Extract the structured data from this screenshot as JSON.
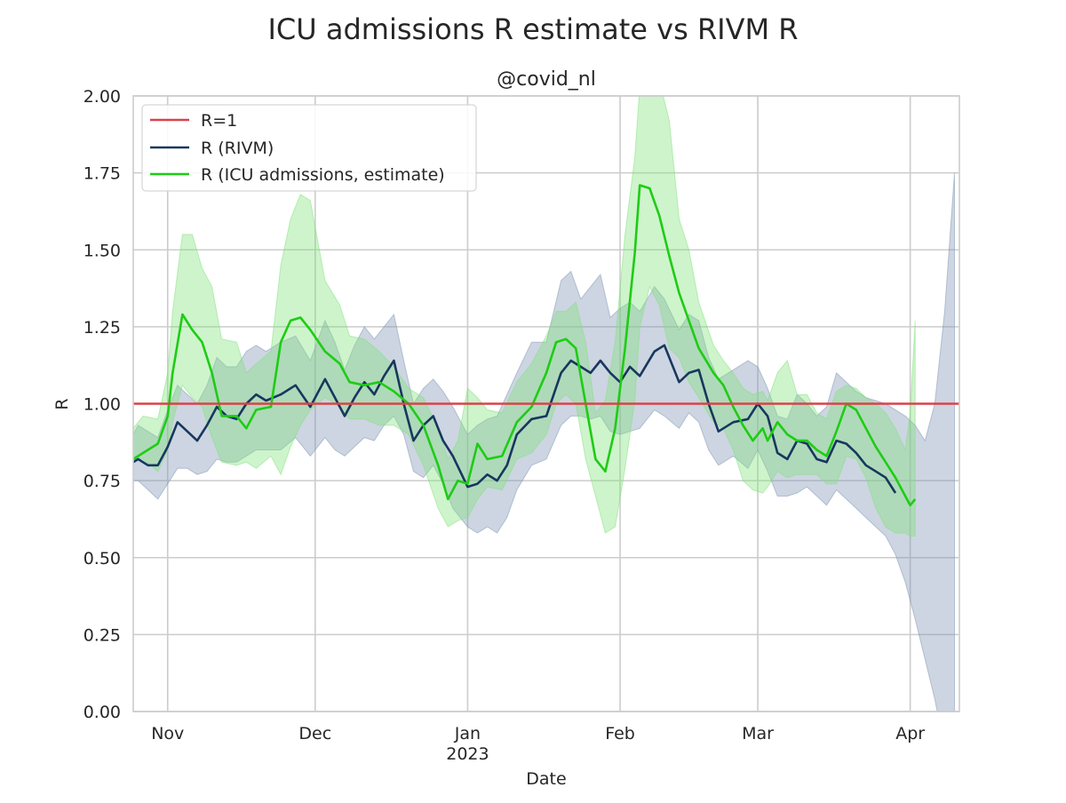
{
  "chart_data": {
    "type": "line",
    "title": "ICU admissions R estimate vs RIVM R",
    "subtitle": "@covid_nl",
    "xlabel": "Date",
    "ylabel": "R",
    "xlim": [
      "2022-10-25",
      "2023-04-11"
    ],
    "ylim": [
      0,
      2
    ],
    "grid": true,
    "legend_position": "top-left",
    "y_ticks": [
      0,
      0.25,
      0.5,
      0.75,
      1.0,
      1.25,
      1.5,
      1.75,
      2.0
    ],
    "y_tick_labels": [
      "0.00",
      "0.25",
      "0.50",
      "0.75",
      "1.00",
      "1.25",
      "1.50",
      "1.75",
      "2.00"
    ],
    "x_ticks": [
      {
        "date": "2022-11-01",
        "label": "Nov",
        "sublabel": ""
      },
      {
        "date": "2022-12-01",
        "label": "Dec",
        "sublabel": ""
      },
      {
        "date": "2023-01-01",
        "label": "Jan",
        "sublabel": "2023"
      },
      {
        "date": "2023-02-01",
        "label": "Feb",
        "sublabel": ""
      },
      {
        "date": "2023-03-01",
        "label": "Mar",
        "sublabel": ""
      },
      {
        "date": "2023-04-01",
        "label": "Apr",
        "sublabel": ""
      }
    ],
    "reference_line": {
      "name": "R=1",
      "y": 1.0,
      "color": "#d9434b"
    },
    "series": [
      {
        "name": "R (RIVM)",
        "color": "#17375e",
        "band_color": "#8095b3",
        "points": [
          [
            "2022-10-25",
            0.81,
            0.75,
            0.9
          ],
          [
            "2022-10-26",
            0.82,
            0.75,
            0.93
          ],
          [
            "2022-10-28",
            0.8,
            0.72,
            0.91
          ],
          [
            "2022-10-30",
            0.8,
            0.69,
            0.89
          ],
          [
            "2022-11-01",
            0.86,
            0.74,
            0.98
          ],
          [
            "2022-11-03",
            0.94,
            0.79,
            1.06
          ],
          [
            "2022-11-05",
            0.91,
            0.79,
            1.03
          ],
          [
            "2022-11-07",
            0.88,
            0.77,
            1.0
          ],
          [
            "2022-11-09",
            0.93,
            0.78,
            1.06
          ],
          [
            "2022-11-11",
            0.99,
            0.82,
            1.15
          ],
          [
            "2022-11-13",
            0.96,
            0.81,
            1.12
          ],
          [
            "2022-11-15",
            0.95,
            0.81,
            1.12
          ],
          [
            "2022-11-17",
            1.0,
            0.83,
            1.17
          ],
          [
            "2022-11-19",
            1.03,
            0.85,
            1.19
          ],
          [
            "2022-11-21",
            1.01,
            0.85,
            1.17
          ],
          [
            "2022-11-24",
            1.03,
            0.85,
            1.2
          ],
          [
            "2022-11-27",
            1.06,
            0.89,
            1.22
          ],
          [
            "2022-11-30",
            0.99,
            0.83,
            1.14
          ],
          [
            "2022-12-03",
            1.08,
            0.89,
            1.27
          ],
          [
            "2022-12-05",
            1.02,
            0.85,
            1.2
          ],
          [
            "2022-12-07",
            0.96,
            0.83,
            1.11
          ],
          [
            "2022-12-09",
            1.02,
            0.86,
            1.19
          ],
          [
            "2022-12-11",
            1.07,
            0.89,
            1.25
          ],
          [
            "2022-12-13",
            1.03,
            0.88,
            1.21
          ],
          [
            "2022-12-15",
            1.09,
            0.93,
            1.25
          ],
          [
            "2022-12-17",
            1.14,
            0.96,
            1.29
          ],
          [
            "2022-12-19",
            1.0,
            0.9,
            1.14
          ],
          [
            "2022-12-21",
            0.88,
            0.78,
            1.0
          ],
          [
            "2022-12-23",
            0.93,
            0.76,
            1.05
          ],
          [
            "2022-12-25",
            0.96,
            0.8,
            1.08
          ],
          [
            "2022-12-27",
            0.88,
            0.74,
            1.04
          ],
          [
            "2022-12-29",
            0.83,
            0.66,
            0.99
          ],
          [
            "2023-01-01",
            0.73,
            0.6,
            0.9
          ],
          [
            "2023-01-03",
            0.74,
            0.58,
            0.93
          ],
          [
            "2023-01-05",
            0.77,
            0.6,
            0.95
          ],
          [
            "2023-01-07",
            0.75,
            0.58,
            0.96
          ],
          [
            "2023-01-09",
            0.8,
            0.63,
            1.03
          ],
          [
            "2023-01-11",
            0.9,
            0.72,
            1.1
          ],
          [
            "2023-01-14",
            0.95,
            0.8,
            1.2
          ],
          [
            "2023-01-17",
            0.96,
            0.82,
            1.2
          ],
          [
            "2023-01-20",
            1.1,
            0.93,
            1.4
          ],
          [
            "2023-01-22",
            1.14,
            0.96,
            1.43
          ],
          [
            "2023-01-24",
            1.12,
            0.96,
            1.34
          ],
          [
            "2023-01-26",
            1.1,
            0.95,
            1.38
          ],
          [
            "2023-01-28",
            1.14,
            0.96,
            1.42
          ],
          [
            "2023-01-30",
            1.1,
            0.91,
            1.28
          ],
          [
            "2023-02-01",
            1.07,
            0.9,
            1.31
          ],
          [
            "2023-02-03",
            1.12,
            0.91,
            1.33
          ],
          [
            "2023-02-05",
            1.09,
            0.92,
            1.3
          ],
          [
            "2023-02-08",
            1.17,
            0.98,
            1.38
          ],
          [
            "2023-02-10",
            1.19,
            0.96,
            1.34
          ],
          [
            "2023-02-13",
            1.07,
            0.92,
            1.24
          ],
          [
            "2023-02-15",
            1.1,
            0.97,
            1.29
          ],
          [
            "2023-02-17",
            1.11,
            0.94,
            1.27
          ],
          [
            "2023-02-19",
            1.0,
            0.85,
            1.15
          ],
          [
            "2023-02-21",
            0.91,
            0.8,
            1.08
          ],
          [
            "2023-02-24",
            0.94,
            0.83,
            1.11
          ],
          [
            "2023-02-27",
            0.95,
            0.79,
            1.14
          ],
          [
            "2023-03-01",
            1.0,
            0.85,
            1.12
          ],
          [
            "2023-03-03",
            0.96,
            0.78,
            1.05
          ],
          [
            "2023-03-05",
            0.84,
            0.7,
            0.96
          ],
          [
            "2023-03-07",
            0.82,
            0.7,
            0.95
          ],
          [
            "2023-03-09",
            0.88,
            0.71,
            1.03
          ],
          [
            "2023-03-11",
            0.87,
            0.73,
            1.0
          ],
          [
            "2023-03-13",
            0.82,
            0.7,
            0.96
          ],
          [
            "2023-03-15",
            0.81,
            0.67,
            0.99
          ],
          [
            "2023-03-17",
            0.88,
            0.72,
            1.1
          ],
          [
            "2023-03-19",
            0.87,
            0.69,
            1.07
          ],
          [
            "2023-03-21",
            0.84,
            0.66,
            1.04
          ],
          [
            "2023-03-23",
            0.8,
            0.63,
            1.02
          ],
          [
            "2023-03-25",
            0.78,
            0.6,
            1.01
          ],
          [
            "2023-03-27",
            0.76,
            0.57,
            1.0
          ],
          [
            "2023-03-29",
            0.71,
            0.51,
            0.98
          ],
          [
            "2023-03-31",
            null,
            0.42,
            0.96
          ],
          [
            "2023-04-02",
            null,
            0.3,
            0.93
          ],
          [
            "2023-04-04",
            null,
            0.17,
            0.88
          ],
          [
            "2023-04-06",
            null,
            0.04,
            1.0
          ],
          [
            "2023-04-08",
            null,
            -0.12,
            1.3
          ],
          [
            "2023-04-10",
            null,
            -0.3,
            1.75
          ]
        ]
      },
      {
        "name": "R (ICU admissions, estimate)",
        "color": "#1ecc14",
        "band_color": "#7fe27a",
        "points": [
          [
            "2022-10-25",
            0.82,
            0.83,
            0.92
          ],
          [
            "2022-10-27",
            0.84,
            0.82,
            0.96
          ],
          [
            "2022-10-30",
            0.87,
            0.78,
            0.95
          ],
          [
            "2022-11-01",
            0.96,
            0.85,
            1.1
          ],
          [
            "2022-11-02",
            1.1,
            0.94,
            1.3
          ],
          [
            "2022-11-04",
            1.29,
            1.06,
            1.55
          ],
          [
            "2022-11-06",
            1.24,
            1.02,
            1.55
          ],
          [
            "2022-11-08",
            1.2,
            0.99,
            1.44
          ],
          [
            "2022-11-10",
            1.1,
            0.89,
            1.38
          ],
          [
            "2022-11-12",
            0.96,
            0.81,
            1.21
          ],
          [
            "2022-11-15",
            0.96,
            0.8,
            1.2
          ],
          [
            "2022-11-17",
            0.92,
            0.81,
            1.1
          ],
          [
            "2022-11-19",
            0.98,
            0.79,
            1.13
          ],
          [
            "2022-11-22",
            0.99,
            0.83,
            1.17
          ],
          [
            "2022-11-24",
            1.2,
            0.77,
            1.45
          ],
          [
            "2022-11-26",
            1.27,
            0.86,
            1.6
          ],
          [
            "2022-11-28",
            1.28,
            0.93,
            1.68
          ],
          [
            "2022-11-30",
            1.24,
            0.98,
            1.66
          ],
          [
            "2022-12-03",
            1.17,
            1.02,
            1.4
          ],
          [
            "2022-12-06",
            1.13,
            0.99,
            1.32
          ],
          [
            "2022-12-08",
            1.07,
            0.95,
            1.22
          ],
          [
            "2022-12-11",
            1.06,
            0.95,
            1.21
          ],
          [
            "2022-12-14",
            1.07,
            0.93,
            1.17
          ],
          [
            "2022-12-17",
            1.04,
            0.93,
            1.12
          ],
          [
            "2022-12-20",
            1.0,
            0.9,
            1.05
          ],
          [
            "2022-12-23",
            0.93,
            0.8,
            1.02
          ],
          [
            "2022-12-26",
            0.8,
            0.66,
            0.92
          ],
          [
            "2022-12-28",
            0.69,
            0.6,
            0.82
          ],
          [
            "2022-12-30",
            0.75,
            0.62,
            0.88
          ],
          [
            "2023-01-01",
            0.74,
            0.63,
            1.05
          ],
          [
            "2023-01-03",
            0.87,
            0.69,
            1.02
          ],
          [
            "2023-01-05",
            0.82,
            0.73,
            0.98
          ],
          [
            "2023-01-08",
            0.83,
            0.72,
            0.97
          ],
          [
            "2023-01-11",
            0.94,
            0.82,
            1.07
          ],
          [
            "2023-01-14",
            0.99,
            0.84,
            1.13
          ],
          [
            "2023-01-17",
            1.1,
            0.9,
            1.22
          ],
          [
            "2023-01-19",
            1.2,
            1.0,
            1.3
          ],
          [
            "2023-01-21",
            1.21,
            1.03,
            1.3
          ],
          [
            "2023-01-23",
            1.18,
            1.0,
            1.33
          ],
          [
            "2023-01-25",
            1.0,
            0.82,
            1.2
          ],
          [
            "2023-01-27",
            0.82,
            0.7,
            0.97
          ],
          [
            "2023-01-29",
            0.78,
            0.58,
            1.01
          ],
          [
            "2023-01-31",
            0.92,
            0.6,
            1.2
          ],
          [
            "2023-02-02",
            1.18,
            0.79,
            1.55
          ],
          [
            "2023-02-04",
            1.49,
            1.01,
            1.8
          ],
          [
            "2023-02-05",
            1.71,
            1.25,
            2.03
          ],
          [
            "2023-02-07",
            1.7,
            1.38,
            2.1
          ],
          [
            "2023-02-09",
            1.61,
            1.32,
            2.05
          ],
          [
            "2023-02-11",
            1.48,
            1.18,
            1.92
          ],
          [
            "2023-02-13",
            1.36,
            1.15,
            1.6
          ],
          [
            "2023-02-15",
            1.27,
            1.07,
            1.5
          ],
          [
            "2023-02-17",
            1.18,
            1.02,
            1.33
          ],
          [
            "2023-02-20",
            1.1,
            0.94,
            1.19
          ],
          [
            "2023-02-22",
            1.06,
            0.92,
            1.14
          ],
          [
            "2023-02-24",
            0.99,
            0.85,
            1.1
          ],
          [
            "2023-02-26",
            0.93,
            0.75,
            1.05
          ],
          [
            "2023-02-28",
            0.88,
            0.72,
            1.03
          ],
          [
            "2023-03-02",
            0.92,
            0.71,
            1.04
          ],
          [
            "2023-03-03",
            0.88,
            0.73,
            1.01
          ],
          [
            "2023-03-05",
            0.94,
            0.78,
            1.1
          ],
          [
            "2023-03-07",
            0.9,
            0.76,
            1.14
          ],
          [
            "2023-03-09",
            0.88,
            0.77,
            1.03
          ],
          [
            "2023-03-11",
            0.88,
            0.77,
            1.03
          ],
          [
            "2023-03-13",
            0.85,
            0.77,
            0.97
          ],
          [
            "2023-03-15",
            0.83,
            0.74,
            0.95
          ],
          [
            "2023-03-17",
            0.91,
            0.74,
            1.04
          ],
          [
            "2023-03-19",
            1.0,
            0.83,
            1.06
          ],
          [
            "2023-03-21",
            0.98,
            0.82,
            1.05
          ],
          [
            "2023-03-23",
            0.92,
            0.76,
            1.02
          ],
          [
            "2023-03-25",
            0.86,
            0.66,
            1.0
          ],
          [
            "2023-03-27",
            0.81,
            0.6,
            0.97
          ],
          [
            "2023-03-29",
            0.76,
            0.58,
            0.92
          ],
          [
            "2023-03-31",
            0.7,
            0.58,
            0.85
          ],
          [
            "2023-04-01",
            0.67,
            0.57,
            0.97
          ],
          [
            "2023-04-02",
            0.69,
            0.57,
            1.27
          ]
        ]
      }
    ]
  }
}
